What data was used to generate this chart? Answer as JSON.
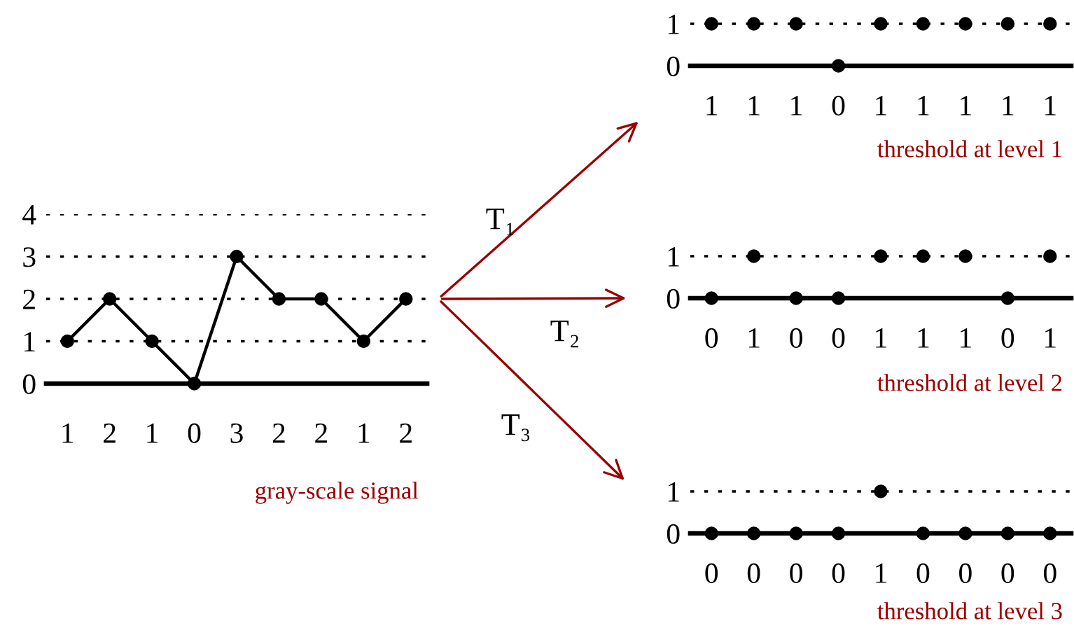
{
  "chart_data": [
    {
      "type": "line",
      "categories": [
        "1",
        "2",
        "1",
        "0",
        "3",
        "2",
        "2",
        "1",
        "2"
      ],
      "series": [
        {
          "color": "#000000",
          "values": [
            1,
            2,
            1,
            0,
            3,
            2,
            2,
            1,
            2
          ]
        }
      ],
      "ylim": [
        0,
        4
      ],
      "yticks": [
        0,
        1,
        2,
        3,
        4
      ],
      "grid": "y",
      "marker": "circle",
      "line_style": "solid",
      "annotations": [
        "gray-scale signal"
      ]
    },
    {
      "type": "scatter",
      "categories": [
        "1",
        "1",
        "1",
        "0",
        "1",
        "1",
        "1",
        "1",
        "1"
      ],
      "series": [
        {
          "color": "#000000",
          "values": [
            1,
            1,
            1,
            0,
            1,
            1,
            1,
            1,
            1
          ]
        }
      ],
      "ylim": [
        0,
        1
      ],
      "yticks": [
        0,
        1
      ],
      "ref_lines": [
        {
          "axis": "y",
          "value": 1,
          "line_style": "dotted"
        }
      ],
      "marker": "circle",
      "annotations": [
        "T₁",
        "threshold at level 1"
      ]
    },
    {
      "type": "scatter",
      "categories": [
        "0",
        "1",
        "0",
        "0",
        "1",
        "1",
        "1",
        "0",
        "1"
      ],
      "series": [
        {
          "color": "#000000",
          "values": [
            0,
            1,
            0,
            0,
            1,
            1,
            1,
            0,
            1
          ]
        }
      ],
      "ylim": [
        0,
        1
      ],
      "yticks": [
        0,
        1
      ],
      "ref_lines": [
        {
          "axis": "y",
          "value": 1,
          "line_style": "dotted"
        }
      ],
      "marker": "circle",
      "annotations": [
        "T₂",
        "threshold at level 2"
      ]
    },
    {
      "type": "scatter",
      "categories": [
        "0",
        "0",
        "0",
        "0",
        "1",
        "0",
        "0",
        "0",
        "0"
      ],
      "series": [
        {
          "color": "#000000",
          "values": [
            0,
            0,
            0,
            0,
            1,
            0,
            0,
            0,
            0
          ]
        }
      ],
      "ylim": [
        0,
        1
      ],
      "yticks": [
        0,
        1
      ],
      "ref_lines": [
        {
          "axis": "y",
          "value": 1,
          "line_style": "dotted"
        }
      ],
      "marker": "circle",
      "annotations": [
        "T₃",
        "threshold at level 3"
      ]
    }
  ]
}
